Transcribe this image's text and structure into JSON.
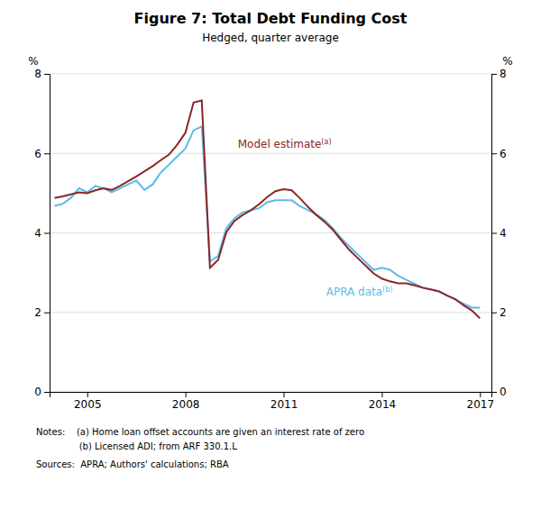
{
  "chart_data": {
    "type": "line",
    "title": "Figure 7: Total Debt Funding Cost",
    "subtitle": "Hedged, quarter average",
    "y_label": "%",
    "y2_label": "%",
    "x": [
      2004.0,
      2004.25,
      2004.5,
      2004.75,
      2005.0,
      2005.25,
      2005.5,
      2005.75,
      2006.0,
      2006.25,
      2006.5,
      2006.75,
      2007.0,
      2007.25,
      2007.5,
      2007.75,
      2008.0,
      2008.25,
      2008.5,
      2008.75,
      2009.0,
      2009.25,
      2009.5,
      2009.75,
      2010.0,
      2010.25,
      2010.5,
      2010.75,
      2011.0,
      2011.25,
      2011.5,
      2011.75,
      2012.0,
      2012.25,
      2012.5,
      2012.75,
      2013.0,
      2013.25,
      2013.5,
      2013.75,
      2014.0,
      2014.25,
      2014.5,
      2014.75,
      2015.0,
      2015.25,
      2015.5,
      2015.75,
      2016.0,
      2016.25,
      2016.5,
      2016.75,
      2017.0
    ],
    "series": [
      {
        "color": "#8B2525",
        "values": [
          4.88,
          4.92,
          4.97,
          5.02,
          5.0,
          5.07,
          5.12,
          5.08,
          5.18,
          5.3,
          5.42,
          5.55,
          5.68,
          5.83,
          5.97,
          6.22,
          6.52,
          7.28,
          7.33,
          3.12,
          3.32,
          4.02,
          4.3,
          4.45,
          4.57,
          4.72,
          4.9,
          5.05,
          5.1,
          5.07,
          4.87,
          4.65,
          4.45,
          4.28,
          4.08,
          3.83,
          3.58,
          3.38,
          3.18,
          2.98,
          2.85,
          2.78,
          2.73,
          2.73,
          2.68,
          2.62,
          2.58,
          2.53,
          2.42,
          2.33,
          2.18,
          2.05,
          1.85
        ]
      },
      {
        "color": "#5BBCE8",
        "values": [
          4.68,
          4.73,
          4.88,
          5.12,
          5.02,
          5.18,
          5.12,
          5.02,
          5.12,
          5.22,
          5.32,
          5.08,
          5.22,
          5.52,
          5.72,
          5.92,
          6.12,
          6.58,
          6.68,
          3.28,
          3.42,
          4.12,
          4.37,
          4.52,
          4.57,
          4.62,
          4.77,
          4.82,
          4.82,
          4.82,
          4.67,
          4.57,
          4.47,
          4.32,
          4.12,
          3.87,
          3.67,
          3.47,
          3.27,
          3.07,
          3.12,
          3.07,
          2.92,
          2.82,
          2.72,
          2.62,
          2.57,
          2.52,
          2.42,
          2.32,
          2.22,
          2.12,
          2.12
        ]
      }
    ],
    "xlim": [
      2003.85,
      2017.35
    ],
    "xticks": [
      2005,
      2008,
      2011,
      2014,
      2017
    ],
    "ylim": [
      0,
      8
    ],
    "yticks": [
      0,
      2,
      4,
      6,
      8
    ],
    "y2lim": [
      0,
      8
    ],
    "y2ticks": [
      0,
      2,
      4,
      6,
      8
    ],
    "grid": "y",
    "annotations": [
      {
        "text": "Model estimate",
        "superscript": "(a)",
        "x": 2009.6,
        "y": 6.15,
        "color": "#8B2525"
      },
      {
        "text": "APRA data",
        "superscript": "(b)",
        "x": 2012.3,
        "y": 2.42,
        "color": "#5BBCE8"
      }
    ],
    "notes": [
      "Notes:    (a) Home loan offset accounts are given an interest rate of zero",
      "               (b) Licensed ADI; from ARF 330.1.L"
    ],
    "source": "Sources:  APRA; Authors' calculations; RBA"
  }
}
